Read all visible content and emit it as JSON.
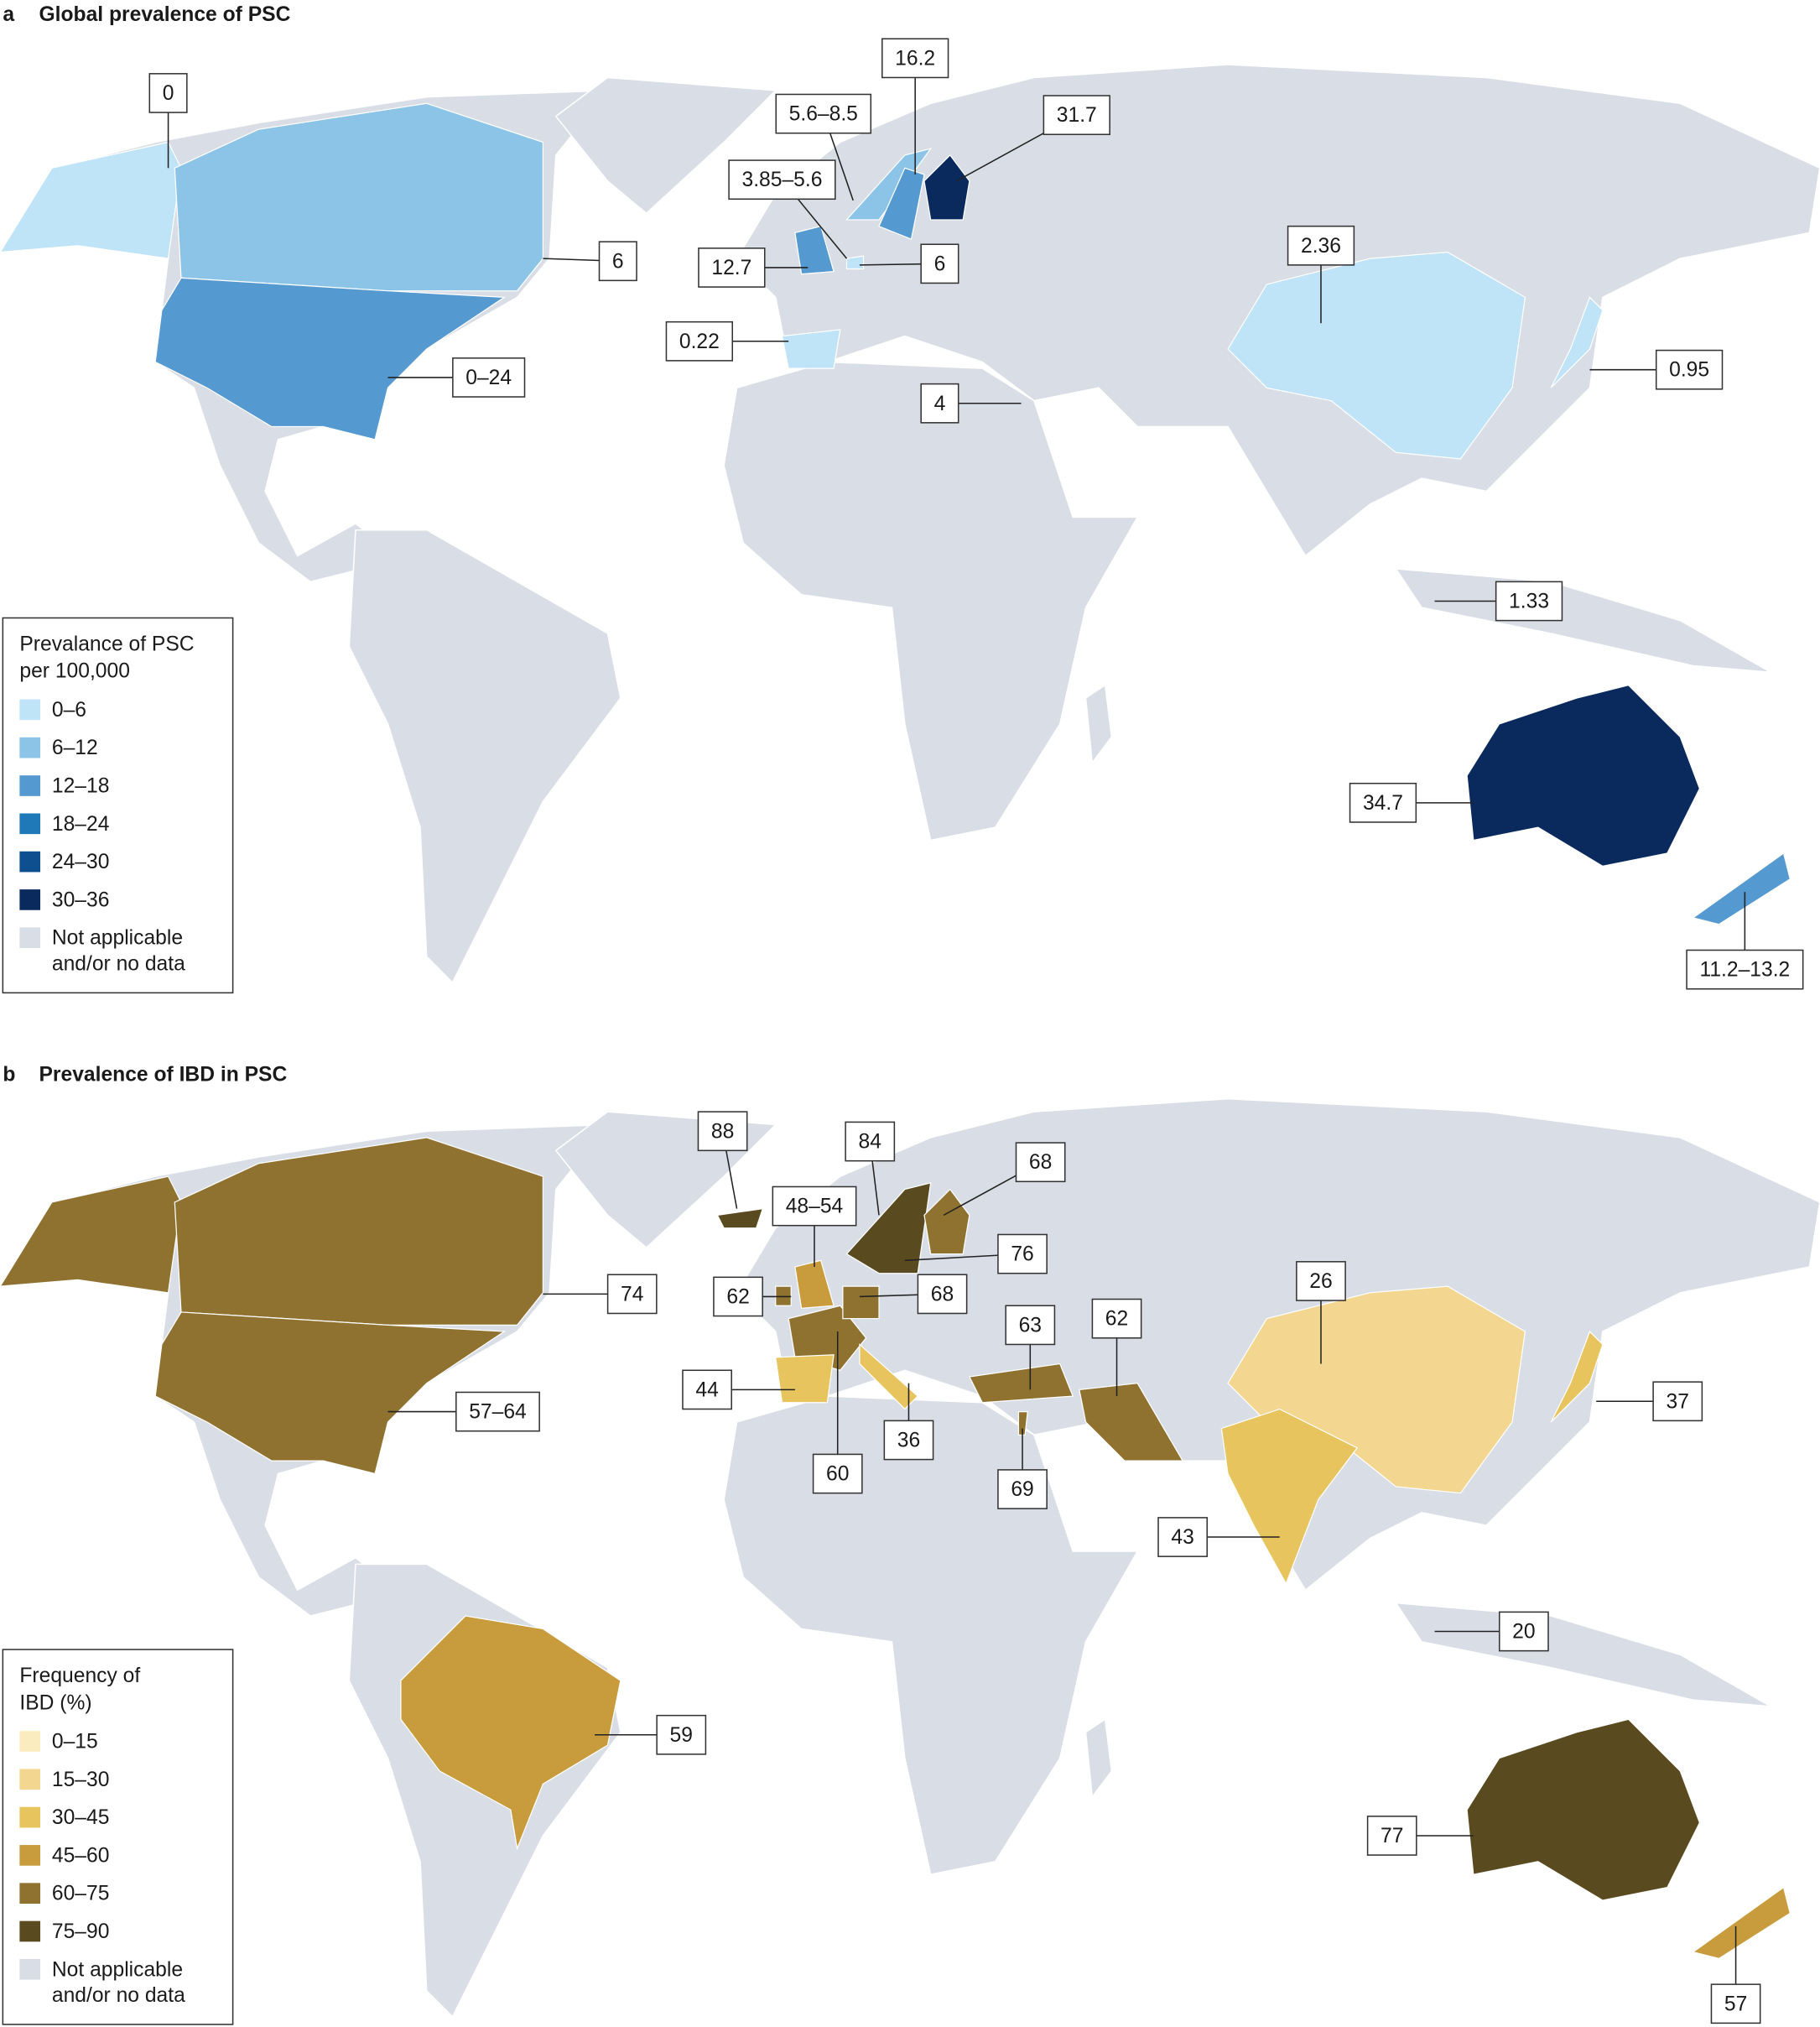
{
  "panels": [
    {
      "letter": "a",
      "title": "Global prevalence of PSC",
      "legend": {
        "title": [
          "Prevalance of PSC",
          "per 100,000"
        ],
        "items": [
          {
            "label": "0–6",
            "color": "#bfe3f7"
          },
          {
            "label": "6–12",
            "color": "#8cc4e8"
          },
          {
            "label": "12–18",
            "color": "#5499cf"
          },
          {
            "label": "18–24",
            "color": "#1f78b8"
          },
          {
            "label": "24–30",
            "color": "#0e4f8f"
          },
          {
            "label": "30–36",
            "color": "#0a2a5e"
          }
        ],
        "no_data": {
          "label": [
            "Not applicable",
            "and/or no data"
          ],
          "color": "#d9dde5"
        }
      },
      "callouts": [
        "0",
        "16.2",
        "5.6–8.5",
        "31.7",
        "3.85–5.6",
        "6",
        "12.7",
        "6",
        "2.36",
        "0.22",
        "0–24",
        "0.95",
        "4",
        "1.33",
        "34.7",
        "11.2–13.2"
      ]
    },
    {
      "letter": "b",
      "title": "Prevalence of IBD in PSC",
      "legend": {
        "title": [
          "Frequency of",
          "IBD (%)"
        ],
        "items": [
          {
            "label": "0–15",
            "color": "#fbecc0"
          },
          {
            "label": "15–30",
            "color": "#f3d68f"
          },
          {
            "label": "30–45",
            "color": "#e8c45e"
          },
          {
            "label": "45–60",
            "color": "#c89b3c"
          },
          {
            "label": "60–75",
            "color": "#8f7230"
          },
          {
            "label": "75–90",
            "color": "#5a4a1f"
          }
        ],
        "no_data": {
          "label": [
            "Not applicable",
            "and/or no data"
          ],
          "color": "#d9dde5"
        }
      },
      "callouts": [
        "88",
        "84",
        "68",
        "48–54",
        "76",
        "74",
        "62",
        "68",
        "63",
        "62",
        "26",
        "44",
        "57–64",
        "37",
        "36",
        "60",
        "69",
        "43",
        "20",
        "59",
        "77",
        "57"
      ]
    }
  ]
}
